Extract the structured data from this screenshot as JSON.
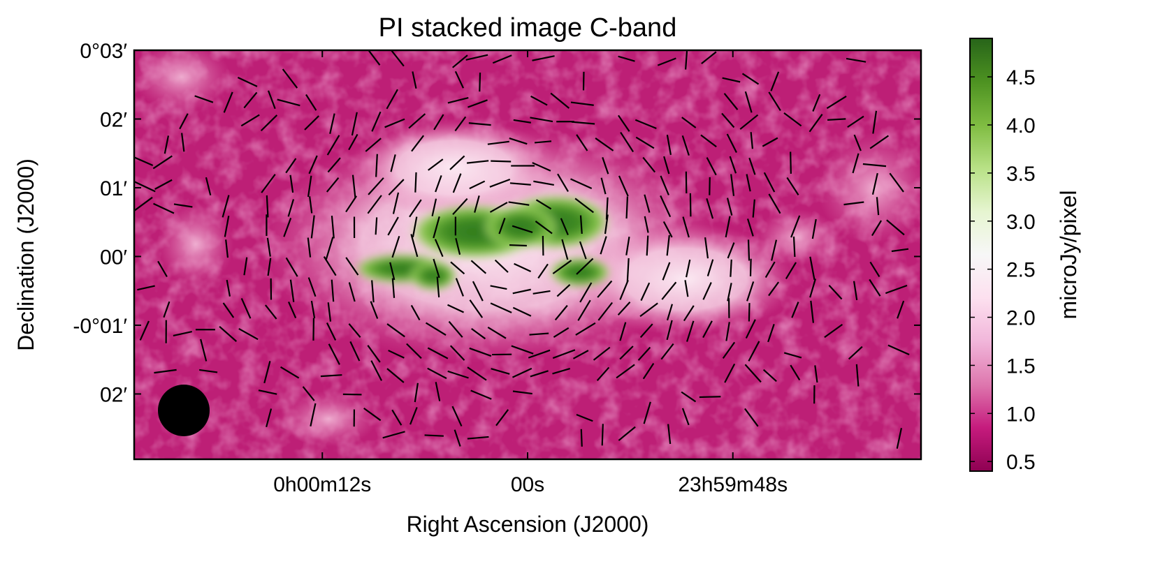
{
  "chart_data": {
    "type": "heatmap",
    "title": "PI stacked image   C-band",
    "xlabel": "Right Ascension (J2000)",
    "ylabel": "Declination (J2000)",
    "x_ticks": [
      {
        "label": "0h00m12s",
        "ra_offset_s": 12
      },
      {
        "label": "00s",
        "ra_offset_s": 0
      },
      {
        "label": "23h59m48s",
        "ra_offset_s": -12
      }
    ],
    "y_ticks": [
      {
        "label": "0°03′",
        "dec_arcmin": 3
      },
      {
        "label": "02′",
        "dec_arcmin": 2
      },
      {
        "label": "01′",
        "dec_arcmin": 1
      },
      {
        "label": "00′",
        "dec_arcmin": 0
      },
      {
        "label": "-0°01′",
        "dec_arcmin": -1
      },
      {
        "label": "02′",
        "dec_arcmin": -2
      }
    ],
    "xlim_ra_offset_s": [
      23,
      -23
    ],
    "ylim_dec_arcmin": [
      -2.95,
      3.0
    ],
    "colorbar": {
      "label": "microJy/pixel",
      "range": [
        0.4,
        4.9
      ],
      "ticks": [
        "0.5",
        "1.0",
        "1.5",
        "2.0",
        "2.5",
        "3.0",
        "3.5",
        "4.0",
        "4.5"
      ],
      "colors": [
        "#8e0152",
        "#c51b7d",
        "#de77ae",
        "#f1b6da",
        "#fde0ef",
        "#f7f7f7",
        "#e6f5d0",
        "#b8e186",
        "#7fbc41",
        "#4d9221",
        "#276419"
      ]
    },
    "emission_components": [
      {
        "description": "bright core left",
        "ra_offset_s": 5.5,
        "dec_arcmin": 0.45,
        "peak": 4.5
      },
      {
        "description": "bright core right",
        "ra_offset_s": -4.5,
        "dec_arcmin": 0.55,
        "peak": 4.8
      },
      {
        "description": "lower-left lobe",
        "ra_offset_s": 10,
        "dec_arcmin": -0.1,
        "peak": 4.0
      },
      {
        "description": "lower-right blob",
        "ra_offset_s": -6,
        "dec_arcmin": -0.2,
        "peak": 3.5
      },
      {
        "description": "white halo",
        "ra_offset_s": 0,
        "dec_arcmin": 0.1,
        "peak": 2.6
      }
    ],
    "beam": {
      "ra_offset_s": 20.3,
      "dec_arcmin": -2.2,
      "diameter_arcmin": 0.75
    },
    "vectors_note": "short black line segments showing polarization orientation over the emission"
  }
}
